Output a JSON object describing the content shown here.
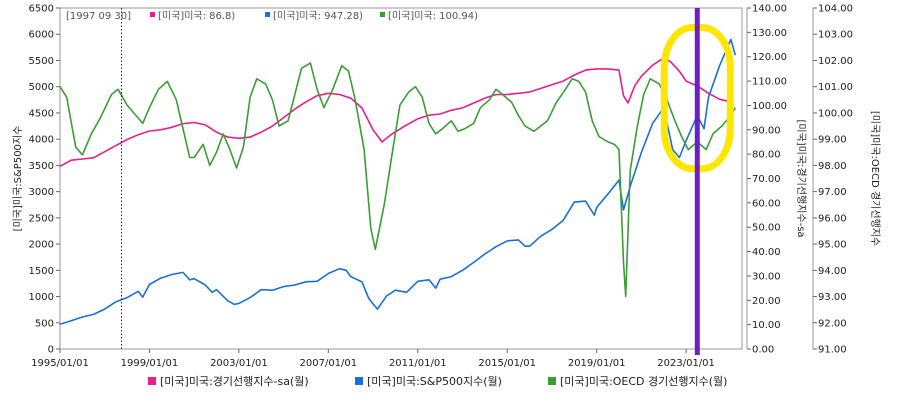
{
  "chart_data": {
    "type": "line",
    "cursor_date": "[1997 09 30]",
    "cursor_values": [
      {
        "label": "[미국]미국: 86.8)",
        "color": "#e91e8c"
      },
      {
        "label": "[미국]미국: 947.28)",
        "color": "#1a6fd8"
      },
      {
        "label": "[미국]미국: 100.94)",
        "color": "#3b9e35"
      }
    ],
    "x_ticks": [
      "1995/01/01",
      "1999/01/01",
      "2003/01/01",
      "2007/01/01",
      "2011/01/01",
      "2015/01/01",
      "2019/01/01",
      "2023/01/01"
    ],
    "x_range": [
      1995.0,
      2025.5
    ],
    "cursor_x": 1997.75,
    "highlight_x": 2023.5,
    "y_left": {
      "label": "[미국]미국:S&P500지수",
      "range": [
        0,
        6500
      ],
      "ticks": [
        "0",
        "500",
        "1000",
        "1500",
        "2000",
        "2500",
        "3000",
        "3500",
        "4000",
        "4500",
        "5000",
        "5500",
        "6000",
        "6500"
      ]
    },
    "y_right1": {
      "label": "[미국]미국:경기선행지수-sa",
      "range": [
        0,
        140
      ],
      "ticks": [
        "0.00",
        "10.00",
        "20.00",
        "30.00",
        "40.00",
        "50.00",
        "60.00",
        "70.00",
        "80.00",
        "90.00",
        "100.00",
        "110.00",
        "120.00",
        "130.00",
        "140.00"
      ]
    },
    "y_right2": {
      "label": "[미국]미국:OECD 경기선행지수",
      "range": [
        91,
        104
      ],
      "ticks": [
        "91.00",
        "92.00",
        "93.00",
        "94.00",
        "95.00",
        "96.00",
        "97.00",
        "98.00",
        "99.00",
        "100.00",
        "101.00",
        "102.00",
        "103.00",
        "104.00"
      ]
    },
    "series": [
      {
        "name": "[미국]미국:경기선행지수-sa(월)",
        "color": "#e91e8c",
        "axis": "right1",
        "points": [
          [
            1995.0,
            75
          ],
          [
            1995.5,
            77.5
          ],
          [
            1996.0,
            78
          ],
          [
            1996.5,
            78.5
          ],
          [
            1997.0,
            81
          ],
          [
            1997.5,
            83.5
          ],
          [
            1998.0,
            86
          ],
          [
            1998.5,
            88
          ],
          [
            1999.0,
            89.5
          ],
          [
            1999.5,
            90
          ],
          [
            2000.0,
            91
          ],
          [
            2000.5,
            92.5
          ],
          [
            2001.0,
            93
          ],
          [
            2001.5,
            92
          ],
          [
            2002.0,
            89
          ],
          [
            2002.5,
            87
          ],
          [
            2003.0,
            86.5
          ],
          [
            2003.5,
            87
          ],
          [
            2004.0,
            89
          ],
          [
            2004.5,
            91.5
          ],
          [
            2005.0,
            95
          ],
          [
            2005.5,
            98.5
          ],
          [
            2006.0,
            101.5
          ],
          [
            2006.5,
            104
          ],
          [
            2007.0,
            105
          ],
          [
            2007.5,
            104.5
          ],
          [
            2008.0,
            103
          ],
          [
            2008.5,
            99
          ],
          [
            2009.0,
            90
          ],
          [
            2009.4,
            85
          ],
          [
            2009.8,
            88
          ],
          [
            2010.5,
            92
          ],
          [
            2011.0,
            94.5
          ],
          [
            2011.5,
            96
          ],
          [
            2012.0,
            96.5
          ],
          [
            2012.5,
            98
          ],
          [
            2013.0,
            99
          ],
          [
            2013.5,
            101
          ],
          [
            2014.0,
            103
          ],
          [
            2014.5,
            104.5
          ],
          [
            2015.0,
            104.5
          ],
          [
            2015.5,
            105
          ],
          [
            2016.0,
            105.5
          ],
          [
            2016.5,
            107
          ],
          [
            2017.0,
            108.5
          ],
          [
            2017.5,
            110
          ],
          [
            2018.0,
            112.5
          ],
          [
            2018.5,
            114.5
          ],
          [
            2019.0,
            115
          ],
          [
            2019.5,
            115
          ],
          [
            2020.0,
            114.5
          ],
          [
            2020.2,
            104
          ],
          [
            2020.4,
            101
          ],
          [
            2020.7,
            108
          ],
          [
            2021.0,
            112
          ],
          [
            2021.5,
            116.5
          ],
          [
            2022.0,
            119.5
          ],
          [
            2022.3,
            118
          ],
          [
            2022.7,
            114
          ],
          [
            2023.0,
            110
          ],
          [
            2023.5,
            108
          ],
          [
            2024.0,
            105
          ],
          [
            2024.5,
            102.5
          ],
          [
            2025.0,
            101.5
          ]
        ]
      },
      {
        "name": "[미국]미국:S&P500지수(월)",
        "color": "#1a6fd8",
        "axis": "left",
        "points": [
          [
            1995.0,
            470
          ],
          [
            1995.5,
            540
          ],
          [
            1996.0,
            610
          ],
          [
            1996.5,
            660
          ],
          [
            1997.0,
            760
          ],
          [
            1997.5,
            900
          ],
          [
            1998.0,
            980
          ],
          [
            1998.5,
            1100
          ],
          [
            1998.7,
            990
          ],
          [
            1999.0,
            1230
          ],
          [
            1999.5,
            1350
          ],
          [
            2000.0,
            1420
          ],
          [
            2000.5,
            1460
          ],
          [
            2000.8,
            1320
          ],
          [
            2001.0,
            1340
          ],
          [
            2001.5,
            1220
          ],
          [
            2001.8,
            1080
          ],
          [
            2002.0,
            1130
          ],
          [
            2002.5,
            920
          ],
          [
            2002.8,
            850
          ],
          [
            2003.0,
            870
          ],
          [
            2003.5,
            980
          ],
          [
            2004.0,
            1130
          ],
          [
            2004.5,
            1120
          ],
          [
            2005.0,
            1190
          ],
          [
            2005.5,
            1220
          ],
          [
            2006.0,
            1280
          ],
          [
            2006.5,
            1290
          ],
          [
            2007.0,
            1440
          ],
          [
            2007.5,
            1530
          ],
          [
            2007.8,
            1500
          ],
          [
            2008.0,
            1380
          ],
          [
            2008.5,
            1280
          ],
          [
            2008.8,
            970
          ],
          [
            2009.0,
            860
          ],
          [
            2009.2,
            760
          ],
          [
            2009.6,
            1010
          ],
          [
            2010.0,
            1120
          ],
          [
            2010.5,
            1080
          ],
          [
            2011.0,
            1290
          ],
          [
            2011.5,
            1320
          ],
          [
            2011.8,
            1160
          ],
          [
            2012.0,
            1330
          ],
          [
            2012.5,
            1380
          ],
          [
            2013.0,
            1500
          ],
          [
            2013.5,
            1650
          ],
          [
            2014.0,
            1810
          ],
          [
            2014.5,
            1950
          ],
          [
            2015.0,
            2060
          ],
          [
            2015.5,
            2080
          ],
          [
            2015.8,
            1960
          ],
          [
            2016.0,
            1960
          ],
          [
            2016.5,
            2150
          ],
          [
            2017.0,
            2280
          ],
          [
            2017.5,
            2450
          ],
          [
            2018.0,
            2800
          ],
          [
            2018.5,
            2820
          ],
          [
            2018.9,
            2550
          ],
          [
            2019.0,
            2700
          ],
          [
            2019.5,
            2950
          ],
          [
            2020.0,
            3220
          ],
          [
            2020.2,
            2650
          ],
          [
            2020.5,
            3100
          ],
          [
            2021.0,
            3750
          ],
          [
            2021.5,
            4300
          ],
          [
            2022.0,
            4600
          ],
          [
            2022.4,
            3800
          ],
          [
            2022.7,
            3650
          ],
          [
            2023.0,
            3970
          ],
          [
            2023.5,
            4450
          ],
          [
            2023.8,
            4200
          ],
          [
            2024.0,
            4800
          ],
          [
            2024.5,
            5400
          ],
          [
            2025.0,
            5900
          ],
          [
            2025.2,
            5600
          ]
        ]
      },
      {
        "name": "[미국]미국:OECD 경기선행지수(월)",
        "color": "#3b9e35",
        "axis": "right2",
        "points": [
          [
            1995.0,
            101.0
          ],
          [
            1995.3,
            100.6
          ],
          [
            1995.7,
            98.7
          ],
          [
            1996.0,
            98.4
          ],
          [
            1996.4,
            99.2
          ],
          [
            1996.8,
            99.8
          ],
          [
            1997.3,
            100.7
          ],
          [
            1997.6,
            100.9
          ],
          [
            1998.0,
            100.3
          ],
          [
            1998.4,
            99.9
          ],
          [
            1998.7,
            99.6
          ],
          [
            1999.0,
            100.2
          ],
          [
            1999.4,
            100.9
          ],
          [
            1999.8,
            101.2
          ],
          [
            2000.2,
            100.5
          ],
          [
            2000.5,
            99.4
          ],
          [
            2000.8,
            98.3
          ],
          [
            2001.0,
            98.3
          ],
          [
            2001.4,
            98.8
          ],
          [
            2001.7,
            98.0
          ],
          [
            2002.0,
            98.5
          ],
          [
            2002.3,
            99.2
          ],
          [
            2002.6,
            98.6
          ],
          [
            2002.9,
            97.9
          ],
          [
            2003.2,
            98.7
          ],
          [
            2003.5,
            100.6
          ],
          [
            2003.8,
            101.3
          ],
          [
            2004.2,
            101.1
          ],
          [
            2004.5,
            100.5
          ],
          [
            2004.8,
            99.5
          ],
          [
            2005.2,
            99.7
          ],
          [
            2005.5,
            100.7
          ],
          [
            2005.8,
            101.7
          ],
          [
            2006.2,
            101.9
          ],
          [
            2006.5,
            100.9
          ],
          [
            2006.8,
            100.2
          ],
          [
            2007.2,
            100.9
          ],
          [
            2007.6,
            101.8
          ],
          [
            2007.9,
            101.6
          ],
          [
            2008.2,
            100.5
          ],
          [
            2008.6,
            98.6
          ],
          [
            2008.9,
            95.6
          ],
          [
            2009.1,
            94.8
          ],
          [
            2009.5,
            96.5
          ],
          [
            2009.9,
            98.7
          ],
          [
            2010.2,
            100.3
          ],
          [
            2010.6,
            100.8
          ],
          [
            2010.9,
            101.0
          ],
          [
            2011.2,
            100.6
          ],
          [
            2011.5,
            99.6
          ],
          [
            2011.8,
            99.2
          ],
          [
            2012.1,
            99.4
          ],
          [
            2012.5,
            99.7
          ],
          [
            2012.8,
            99.3
          ],
          [
            2013.1,
            99.4
          ],
          [
            2013.5,
            99.6
          ],
          [
            2013.8,
            100.2
          ],
          [
            2014.2,
            100.5
          ],
          [
            2014.5,
            100.9
          ],
          [
            2014.8,
            100.7
          ],
          [
            2015.2,
            100.4
          ],
          [
            2015.5,
            99.9
          ],
          [
            2015.8,
            99.5
          ],
          [
            2016.2,
            99.3
          ],
          [
            2016.5,
            99.5
          ],
          [
            2016.8,
            99.7
          ],
          [
            2017.2,
            100.4
          ],
          [
            2017.6,
            100.9
          ],
          [
            2017.9,
            101.3
          ],
          [
            2018.2,
            101.2
          ],
          [
            2018.5,
            100.8
          ],
          [
            2018.8,
            99.7
          ],
          [
            2019.1,
            99.1
          ],
          [
            2019.5,
            98.9
          ],
          [
            2019.8,
            98.8
          ],
          [
            2020.0,
            98.6
          ],
          [
            2020.2,
            94.3
          ],
          [
            2020.3,
            93.0
          ],
          [
            2020.5,
            97.8
          ],
          [
            2020.8,
            99.4
          ],
          [
            2021.1,
            100.7
          ],
          [
            2021.4,
            101.3
          ],
          [
            2021.8,
            101.1
          ],
          [
            2022.1,
            100.6
          ],
          [
            2022.5,
            99.7
          ],
          [
            2022.8,
            99.1
          ],
          [
            2023.1,
            98.6
          ],
          [
            2023.5,
            98.9
          ],
          [
            2023.9,
            98.6
          ],
          [
            2024.2,
            99.2
          ],
          [
            2024.6,
            99.5
          ],
          [
            2025.0,
            99.9
          ],
          [
            2025.2,
            100.2
          ]
        ]
      }
    ],
    "legend": [
      {
        "label": "[미국]미국:경기선행지수-sa(월)",
        "color": "#e91e8c"
      },
      {
        "label": "[미국]미국:S&P500지수(월)",
        "color": "#1a6fd8"
      },
      {
        "label": "[미국]미국:OECD 경기선행지수(월)",
        "color": "#3b9e35"
      }
    ],
    "legend_position": "bottom",
    "annotations": [
      {
        "type": "vertical-line",
        "color": "#6a1fc9"
      },
      {
        "type": "ellipse",
        "color": "#ffe600"
      }
    ],
    "grid": false,
    "cursor_line_style": "dotted"
  }
}
